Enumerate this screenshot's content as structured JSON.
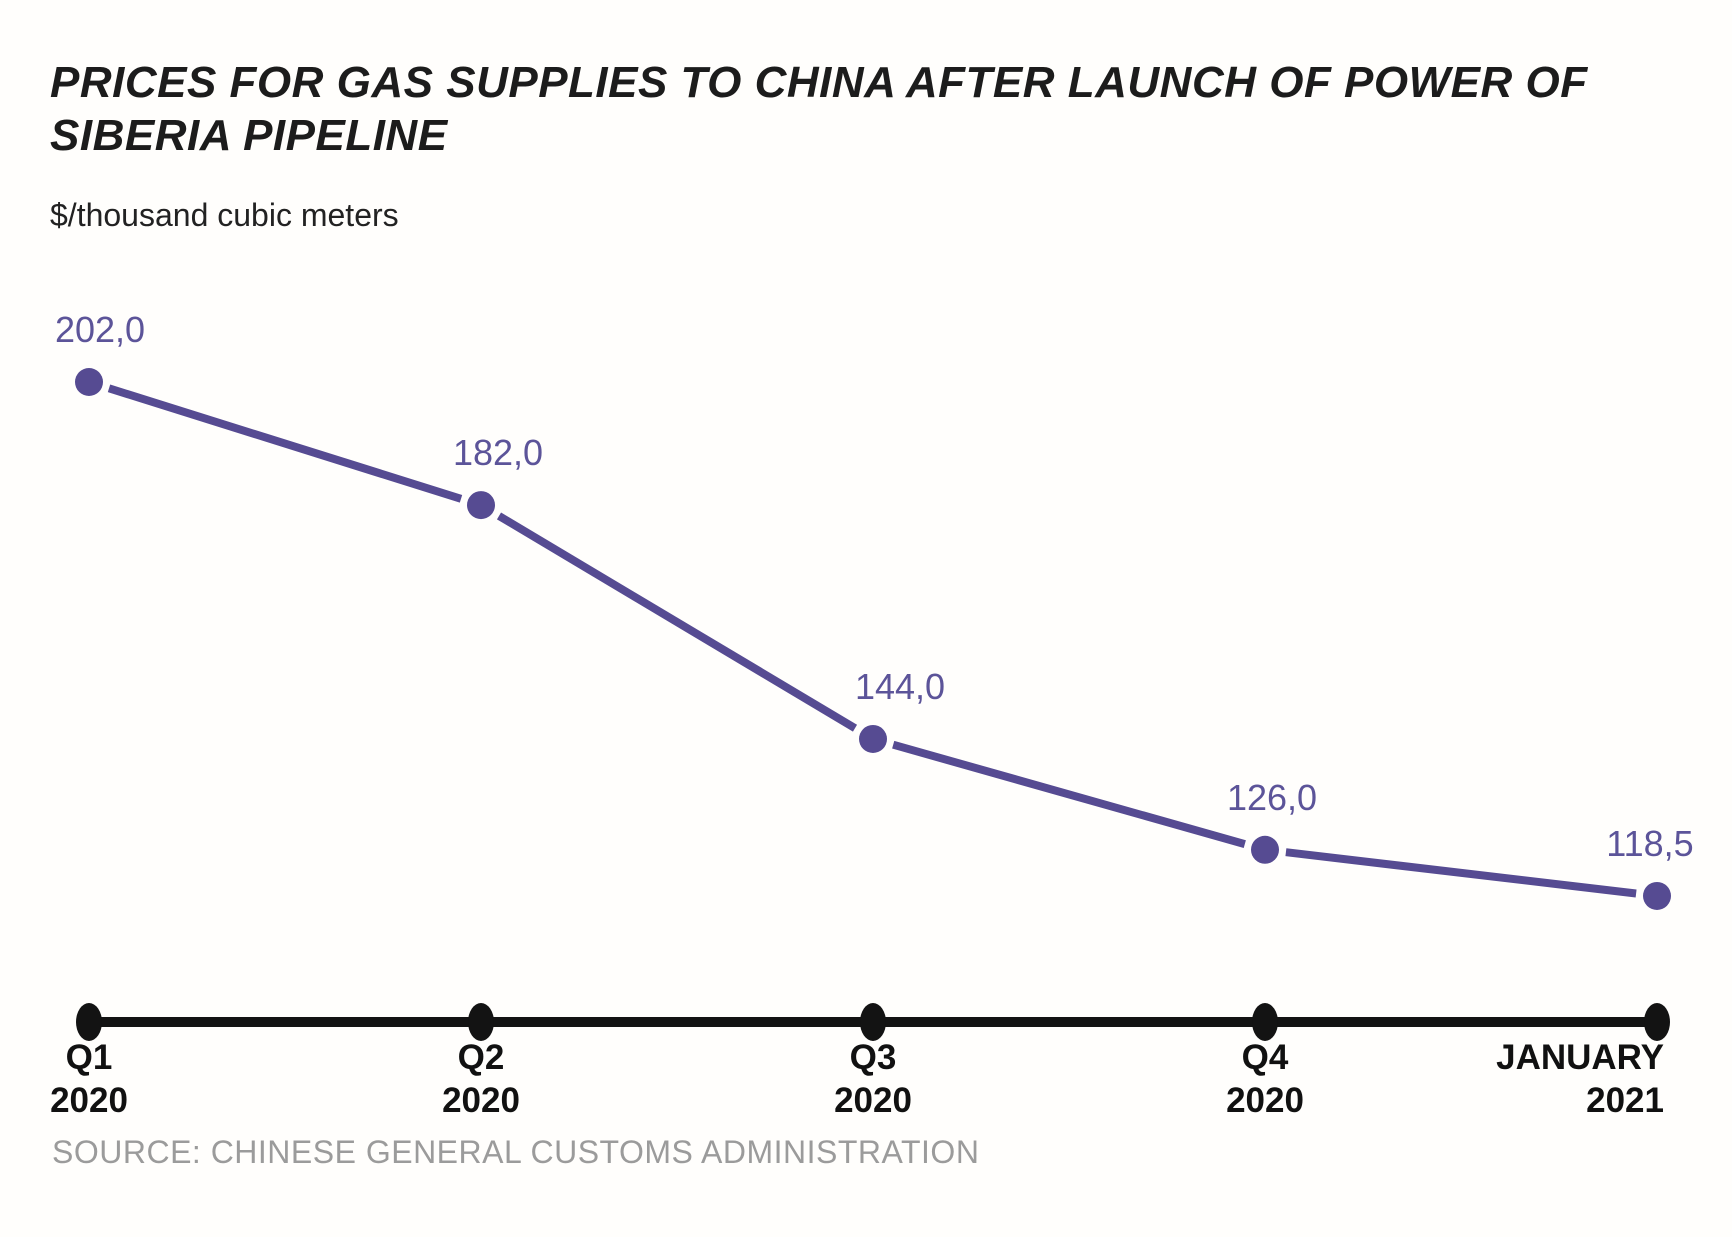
{
  "header": {
    "title_line1": "PRICES FOR GAS SUPPLIES TO CHINA AFTER LAUNCH OF POWER OF",
    "title_line2": "SIBERIA PIPELINE",
    "subtitle": "$/thousand cubic meters"
  },
  "footer": {
    "source": "SOURCE: CHINESE GENERAL CUSTOMS ADMINISTRATION"
  },
  "colors": {
    "background": "#fffefc",
    "line": "#564b92",
    "point": "#564b92",
    "value_label": "#5c5499",
    "axis": "#131313",
    "category_label": "#111111",
    "source_text": "#9b9b9b"
  },
  "chart_data": {
    "type": "line",
    "title": "PRICES FOR GAS SUPPLIES TO CHINA AFTER LAUNCH OF POWER OF SIBERIA PIPELINE",
    "ylabel": "$/thousand cubic meters",
    "xlabel": "",
    "grid": false,
    "legend": false,
    "categories": [
      "Q1 2020",
      "Q2 2020",
      "Q3 2020",
      "Q4 2020",
      "JANUARY 2021"
    ],
    "category_lines": [
      {
        "line1": "Q1",
        "line2": "2020"
      },
      {
        "line1": "Q2",
        "line2": "2020"
      },
      {
        "line1": "Q3",
        "line2": "2020"
      },
      {
        "line1": "Q4",
        "line2": "2020"
      },
      {
        "line1": "JANUARY",
        "line2": "2021"
      }
    ],
    "values": [
      202.0,
      182.0,
      144.0,
      126.0,
      118.5
    ],
    "point_labels": [
      "202,0",
      "182,0",
      "144,0",
      "126,0",
      "118,5"
    ],
    "ylim": [
      110,
      210
    ],
    "source": "SOURCE: CHINESE GENERAL CUSTOMS ADMINISTRATION"
  }
}
